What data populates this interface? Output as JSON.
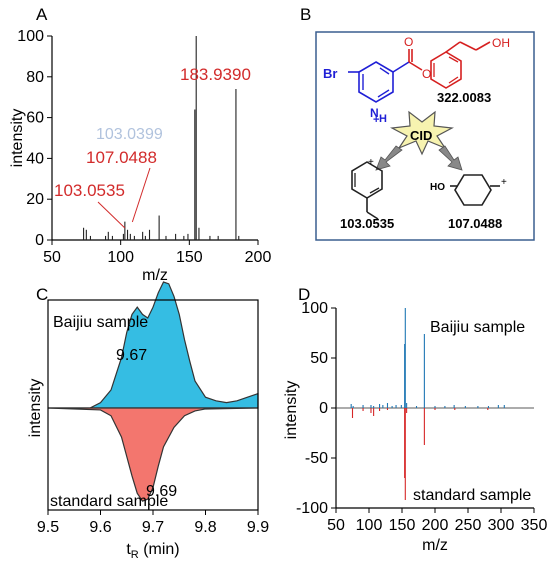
{
  "panel_labels": [
    "A",
    "B",
    "C",
    "D"
  ],
  "chart_data": [
    {
      "id": "A",
      "type": "bar",
      "xlabel": "m/z",
      "ylabel": "intensity",
      "xlim": [
        50,
        200
      ],
      "ylim": [
        0,
        100
      ],
      "xticks": [
        50,
        100,
        150,
        200
      ],
      "yticks": [
        0,
        20,
        40,
        60,
        80,
        100
      ],
      "grid": false,
      "peaks": [
        {
          "x": 73,
          "y": 6
        },
        {
          "x": 75,
          "y": 5
        },
        {
          "x": 78,
          "y": 2
        },
        {
          "x": 89,
          "y": 2
        },
        {
          "x": 91,
          "y": 4
        },
        {
          "x": 94,
          "y": 2
        },
        {
          "x": 102,
          "y": 3
        },
        {
          "x": 103.0535,
          "y": 9
        },
        {
          "x": 105,
          "y": 5
        },
        {
          "x": 107.0488,
          "y": 3
        },
        {
          "x": 110,
          "y": 2
        },
        {
          "x": 116,
          "y": 4
        },
        {
          "x": 118,
          "y": 2
        },
        {
          "x": 121,
          "y": 5
        },
        {
          "x": 128,
          "y": 12
        },
        {
          "x": 133,
          "y": 2
        },
        {
          "x": 140,
          "y": 3
        },
        {
          "x": 146,
          "y": 2
        },
        {
          "x": 149,
          "y": 3
        },
        {
          "x": 154,
          "y": 64
        },
        {
          "x": 155,
          "y": 100
        },
        {
          "x": 157,
          "y": 6
        },
        {
          "x": 165,
          "y": 2
        },
        {
          "x": 171,
          "y": 2
        },
        {
          "x": 183.939,
          "y": 74
        },
        {
          "x": 186,
          "y": 2
        }
      ],
      "annotations": [
        {
          "text": "183.9390",
          "x": 183.939
        },
        {
          "text": "107.0488",
          "x": 107.0488
        },
        {
          "text": "103.0535",
          "x": 103.0535
        }
      ],
      "obscured_text": "103.0399"
    },
    {
      "id": "C",
      "type": "area",
      "xlabel": "t",
      "xlabel_sub": "R",
      "xlabel_unit": " (min)",
      "ylabel": "intensity",
      "xlim": [
        9.5,
        9.9
      ],
      "xticks": [
        "9.5",
        "9.6",
        "9.7",
        "9.8",
        "9.9"
      ],
      "y_axis_ticks_shown": false,
      "series": [
        {
          "name": "Baijiu sample",
          "color": "#35bde3",
          "x": [
            9.5,
            9.58,
            9.6,
            9.62,
            9.64,
            9.65,
            9.66,
            9.67,
            9.68,
            9.69,
            9.7,
            9.71,
            9.72,
            9.73,
            9.74,
            9.75,
            9.76,
            9.77,
            9.78,
            9.8,
            9.82,
            9.84,
            9.86,
            9.88,
            9.9
          ],
          "y": [
            0,
            0,
            0.03,
            0.1,
            0.28,
            0.42,
            0.52,
            0.56,
            0.52,
            0.5,
            0.56,
            0.64,
            0.7,
            0.69,
            0.62,
            0.52,
            0.38,
            0.26,
            0.15,
            0.06,
            0.04,
            0.03,
            0.04,
            0.06,
            0.08
          ]
        },
        {
          "name": "standard sample",
          "color": "#f3766e",
          "x": [
            9.5,
            9.6,
            9.62,
            9.64,
            9.65,
            9.66,
            9.67,
            9.68,
            9.69,
            9.7,
            9.71,
            9.72,
            9.74,
            9.76,
            9.78,
            9.8,
            9.9
          ],
          "y": [
            0,
            -0.02,
            -0.08,
            -0.3,
            -0.5,
            -0.7,
            -0.88,
            -0.96,
            -0.94,
            -0.82,
            -0.6,
            -0.4,
            -0.2,
            -0.08,
            -0.03,
            -0.01,
            0
          ]
        }
      ],
      "annotations": [
        {
          "text": "9.67"
        },
        {
          "text": "9.69"
        }
      ]
    },
    {
      "id": "D",
      "type": "bar",
      "xlabel": "m/z",
      "ylabel": "intensity",
      "xlim": [
        50,
        350
      ],
      "ylim": [
        -100,
        100
      ],
      "xticks": [
        50,
        100,
        150,
        200,
        250,
        300,
        350
      ],
      "yticks": [
        -100,
        -50,
        0,
        50,
        100
      ],
      "series": [
        {
          "name": "Baijiu sample",
          "color": "#1f77b4",
          "peaks": [
            [
              73,
              4
            ],
            [
              76,
              2
            ],
            [
              91,
              3
            ],
            [
              103,
              3
            ],
            [
              107,
              2
            ],
            [
              116,
              4
            ],
            [
              121,
              3
            ],
            [
              128,
              5
            ],
            [
              135,
              2
            ],
            [
              141,
              3
            ],
            [
              149,
              3
            ],
            [
              154,
              64
            ],
            [
              155,
              100
            ],
            [
              157,
              5
            ],
            [
              172,
              2
            ],
            [
              183.9,
              74
            ],
            [
              200,
              2
            ],
            [
              215,
              2
            ],
            [
              229,
              3
            ],
            [
              246,
              2
            ],
            [
              265,
              2
            ],
            [
              281,
              2
            ],
            [
              296,
              3
            ],
            [
              305,
              3
            ]
          ]
        },
        {
          "name": "standard sample",
          "color": "#d62728",
          "peaks": [
            [
              75,
              -10
            ],
            [
              91,
              -3
            ],
            [
              103,
              -5
            ],
            [
              107,
              -8
            ],
            [
              116,
              -3
            ],
            [
              128,
              -2
            ],
            [
              154,
              -70
            ],
            [
              155,
              -92
            ],
            [
              157,
              -5
            ],
            [
              183.9,
              -37
            ],
            [
              200,
              -2
            ],
            [
              230,
              -2
            ],
            [
              280,
              -2
            ]
          ]
        }
      ]
    }
  ],
  "scheme": {
    "atom_br": "Br",
    "atom_o_carbonyl": "O",
    "atom_o_ester": "O",
    "atom_oh": "OH",
    "atom_n": "N",
    "atom_h": "H",
    "charge_plus": "+",
    "cid": "CID",
    "mz_parent": "322.0083",
    "frag1_label": "103.0535",
    "frag2_label": "107.0488",
    "frag2_ho": "HO",
    "frag_plus": "+",
    "colors": {
      "blue_part": "#1f1fd6",
      "red_part": "#d62020",
      "box": "#3a5f8f",
      "burst": "#f7f3b0"
    }
  }
}
